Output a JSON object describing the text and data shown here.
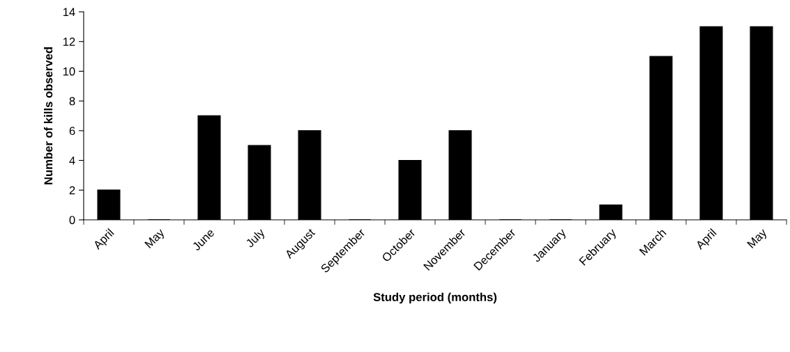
{
  "chart_data": {
    "type": "bar",
    "xlabel": "Study period (months)",
    "ylabel": "Number of kills observed",
    "categories": [
      "April",
      "May",
      "June",
      "July",
      "August",
      "September",
      "October",
      "November",
      "December",
      "January",
      "February",
      "March",
      "April",
      "May"
    ],
    "values": [
      2,
      0,
      7,
      5,
      6,
      0,
      4,
      6,
      0,
      0,
      1,
      11,
      13,
      13
    ],
    "color": "#000000",
    "ylim": [
      0,
      14
    ],
    "yticks": [
      0,
      2,
      4,
      6,
      8,
      10,
      12,
      14
    ],
    "grid": false,
    "legend": false
  }
}
